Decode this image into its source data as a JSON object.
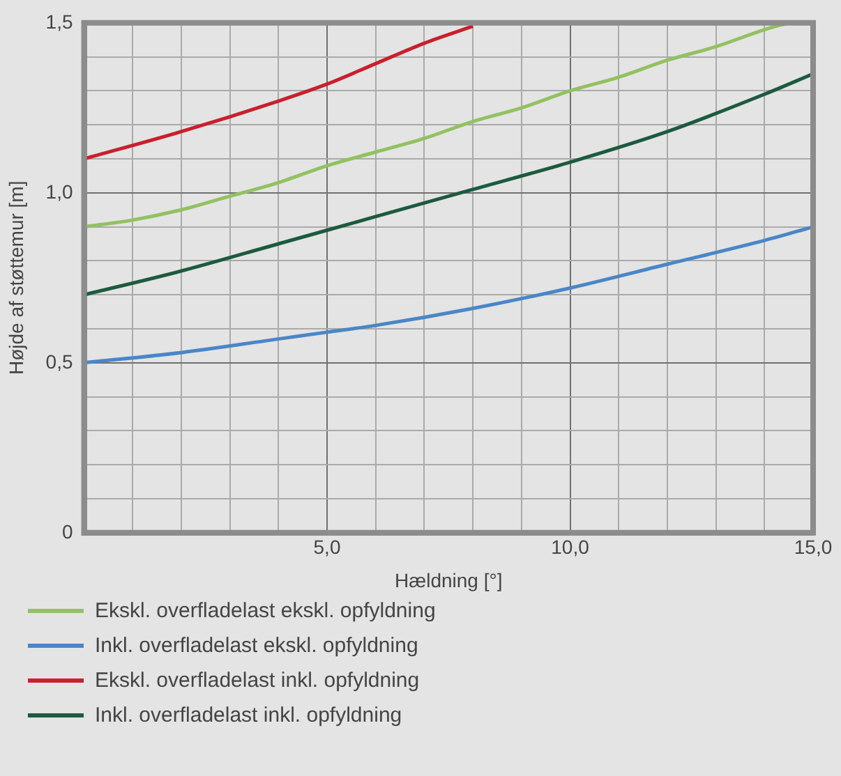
{
  "chart_data": {
    "type": "line",
    "xlabel": "Hældning [°]",
    "ylabel": "Højde af støttemur [m]",
    "xlim": [
      0,
      15
    ],
    "ylim": [
      0,
      1.5
    ],
    "xticks": [
      {
        "value": 0,
        "label": null
      },
      {
        "value": 1,
        "label": null
      },
      {
        "value": 2,
        "label": null
      },
      {
        "value": 3,
        "label": null
      },
      {
        "value": 4,
        "label": null
      },
      {
        "value": 5,
        "label": "5,0"
      },
      {
        "value": 6,
        "label": null
      },
      {
        "value": 7,
        "label": null
      },
      {
        "value": 8,
        "label": null
      },
      {
        "value": 9,
        "label": null
      },
      {
        "value": 10,
        "label": "10,0"
      },
      {
        "value": 11,
        "label": null
      },
      {
        "value": 12,
        "label": null
      },
      {
        "value": 13,
        "label": null
      },
      {
        "value": 14,
        "label": null
      },
      {
        "value": 15,
        "label": "15,0"
      }
    ],
    "yticks": [
      {
        "value": 0,
        "label": "0"
      },
      {
        "value": 0.1,
        "label": null
      },
      {
        "value": 0.2,
        "label": null
      },
      {
        "value": 0.3,
        "label": null
      },
      {
        "value": 0.4,
        "label": null
      },
      {
        "value": 0.5,
        "label": "0,5"
      },
      {
        "value": 0.6,
        "label": null
      },
      {
        "value": 0.7,
        "label": null
      },
      {
        "value": 0.8,
        "label": null
      },
      {
        "value": 0.9,
        "label": null
      },
      {
        "value": 1,
        "label": "1,0"
      },
      {
        "value": 1.1,
        "label": null
      },
      {
        "value": 1.2,
        "label": null
      },
      {
        "value": 1.3,
        "label": null
      },
      {
        "value": 1.4,
        "label": null
      },
      {
        "value": 1.5,
        "label": "1,5"
      }
    ],
    "grid": true,
    "legend": "bottom",
    "marker": "none",
    "line_style": "solid",
    "series": [
      {
        "name": "Ekskl. overfladelast ekskl. opfyldning",
        "color": "#93c162",
        "x": [
          0,
          1,
          2,
          3,
          4,
          5,
          6,
          7,
          8,
          9,
          10,
          11,
          12,
          13,
          14,
          14.5
        ],
        "values": [
          0.9,
          0.92,
          0.95,
          0.99,
          1.03,
          1.08,
          1.12,
          1.16,
          1.21,
          1.25,
          1.3,
          1.34,
          1.39,
          1.43,
          1.48,
          1.5
        ]
      },
      {
        "name": "Inkl. overfladelast ekskl. opfyldning",
        "color": "#4a86c8",
        "x": [
          0,
          2,
          4,
          5,
          6,
          8,
          10,
          12,
          14,
          15
        ],
        "values": [
          0.5,
          0.53,
          0.57,
          0.59,
          0.61,
          0.66,
          0.72,
          0.79,
          0.86,
          0.9
        ]
      },
      {
        "name": "Ekskl. overfladelast inkl. opfyldning",
        "color": "#c8202e",
        "x": [
          0,
          2,
          4,
          5,
          6,
          7,
          8
        ],
        "values": [
          1.1,
          1.18,
          1.27,
          1.32,
          1.38,
          1.44,
          1.49
        ]
      },
      {
        "name": "Inkl. overfladelast inkl. opfyldning",
        "color": "#1d5a40",
        "x": [
          0,
          2,
          4,
          5,
          6,
          8,
          10,
          12,
          14,
          15
        ],
        "values": [
          0.7,
          0.77,
          0.85,
          0.89,
          0.93,
          1.01,
          1.09,
          1.18,
          1.29,
          1.35
        ]
      }
    ]
  }
}
